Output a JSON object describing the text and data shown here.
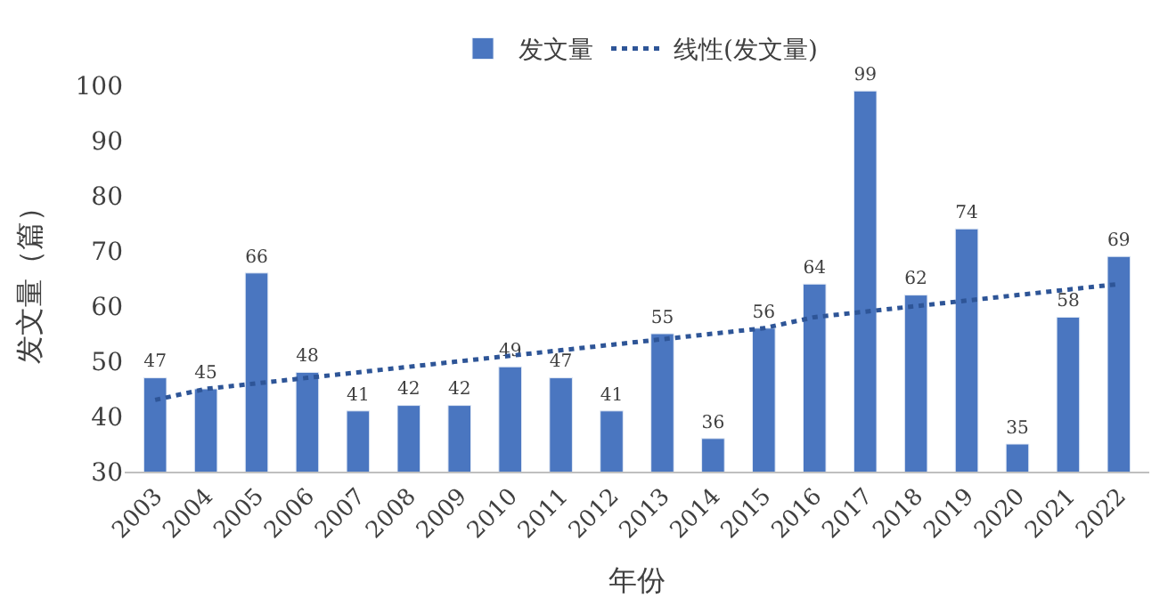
{
  "chart_data": {
    "type": "bar",
    "xlabel": "年份",
    "ylabel": "发文量（篇）",
    "categories": [
      "2003",
      "2004",
      "2005",
      "2006",
      "2007",
      "2008",
      "2009",
      "2010",
      "2011",
      "2012",
      "2013",
      "2014",
      "2015",
      "2016",
      "2017",
      "2018",
      "2019",
      "2020",
      "2021",
      "2022"
    ],
    "series": [
      {
        "name": "发文量",
        "color": "#4a76c0",
        "values": [
          47,
          45,
          66,
          48,
          41,
          42,
          42,
          49,
          47,
          41,
          55,
          36,
          56,
          64,
          99,
          62,
          74,
          35,
          58,
          69
        ],
        "value_labels": [
          "47",
          "45",
          "66",
          "48",
          "41",
          "42",
          "42",
          "49",
          "47",
          "41",
          "55",
          "36",
          "56",
          "64",
          "99",
          "62",
          "74",
          "35",
          "58",
          "69"
        ]
      },
      {
        "name": "线性(发文量)",
        "type": "line",
        "line_style": "dotted",
        "color": "#2e5597",
        "values": [
          43,
          45,
          46,
          47,
          48,
          49,
          50,
          51,
          52,
          53,
          54,
          55,
          56,
          58,
          59,
          60,
          61,
          62,
          63,
          64
        ]
      }
    ],
    "ylim": [
      30,
      100
    ],
    "yticks": [
      30,
      40,
      50,
      60,
      70,
      80,
      90,
      100
    ],
    "legend": "top"
  }
}
